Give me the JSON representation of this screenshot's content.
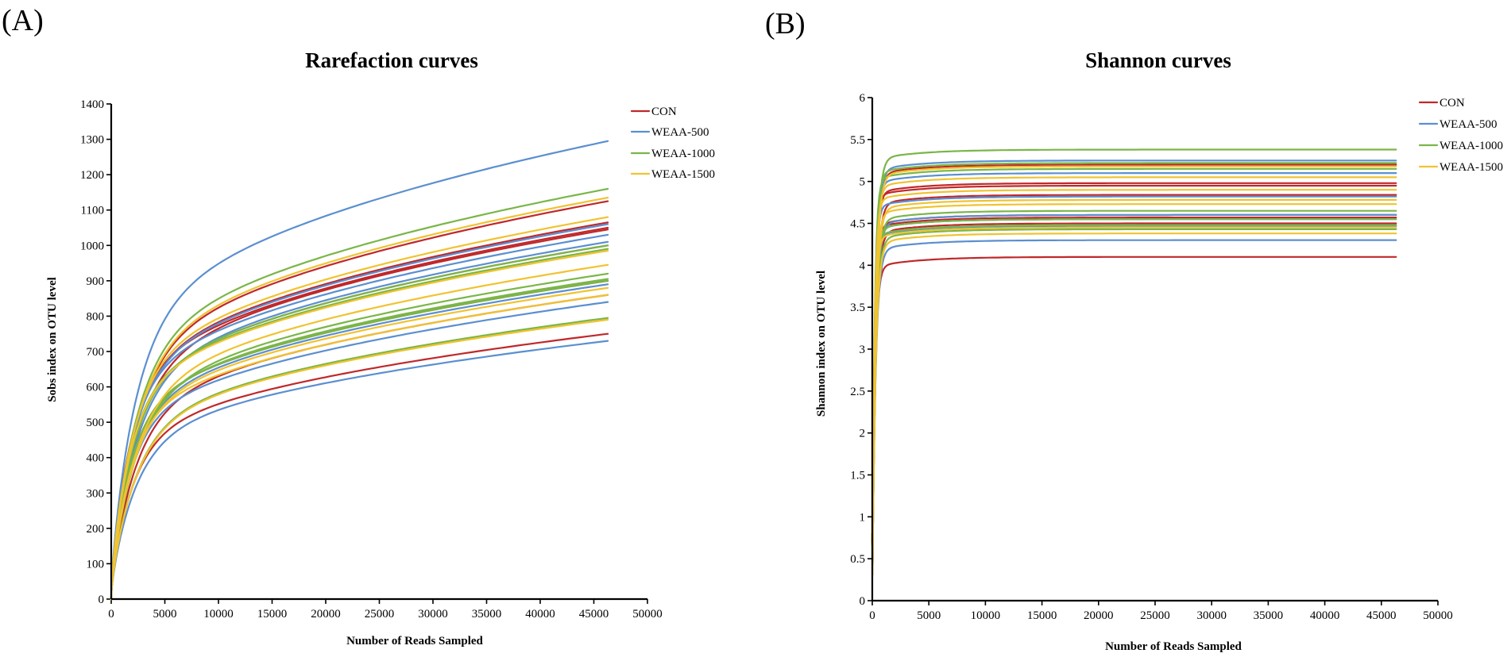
{
  "panels": [
    {
      "label": "(A)",
      "title": "Rarefaction curves",
      "xlabel": "Number of Reads Sampled",
      "ylabel": "Sobs index on OTU level",
      "xticks": [
        "0",
        "5000",
        "10000",
        "15000",
        "20000",
        "25000",
        "30000",
        "35000",
        "40000",
        "45000",
        "50000"
      ],
      "yticks": [
        "0",
        "100",
        "200",
        "300",
        "400",
        "500",
        "600",
        "700",
        "800",
        "900",
        "1000",
        "1100",
        "1200",
        "1300",
        "1400"
      ],
      "legend": [
        "CON",
        "WEAA-500",
        "WEAA-1000",
        "WEAA-1500"
      ]
    },
    {
      "label": "(B)",
      "title": "Shannon curves",
      "xlabel": "Number of Reads Sampled",
      "ylabel": "Shannon index on OTU level",
      "xticks": [
        "0",
        "5000",
        "10000",
        "15000",
        "20000",
        "25000",
        "30000",
        "35000",
        "40000",
        "45000",
        "50000"
      ],
      "yticks": [
        "0",
        "0.5",
        "1",
        "1.5",
        "2",
        "2.5",
        "3",
        "3.5",
        "4",
        "4.5",
        "5",
        "5.5",
        "6"
      ],
      "legend": [
        "CON",
        "WEAA-500",
        "WEAA-1000",
        "WEAA-1500"
      ]
    }
  ],
  "chart_data": [
    {
      "type": "line",
      "title": "Rarefaction curves",
      "xlabel": "Number of Reads Sampled",
      "ylabel": "Sobs index on OTU level",
      "xlim": [
        0,
        50000
      ],
      "ylim": [
        0,
        1400
      ],
      "x_max_sampled": 46300,
      "legend_position": "top-right",
      "colors": {
        "CON": "#c0282a",
        "WEAA-500": "#5b8fd0",
        "WEAA-1000": "#7ab648",
        "WEAA-1500": "#f0c330"
      },
      "note": "Approximate final Sobs value (at ~46300 reads) per sample curve",
      "series": [
        {
          "name": "CON",
          "final_values": [
            1125,
            1065,
            1050,
            1045,
            1000,
            900,
            860,
            750
          ]
        },
        {
          "name": "WEAA-500",
          "final_values": [
            1295,
            1060,
            1030,
            1010,
            890,
            840,
            730
          ]
        },
        {
          "name": "WEAA-1000",
          "final_values": [
            1160,
            1000,
            990,
            920,
            905,
            900,
            795
          ]
        },
        {
          "name": "WEAA-1500",
          "final_values": [
            1135,
            1080,
            985,
            945,
            880,
            860,
            790
          ]
        }
      ]
    },
    {
      "type": "line",
      "title": "Shannon curves",
      "xlabel": "Number of Reads Sampled",
      "ylabel": "Shannon index on OTU level",
      "xlim": [
        0,
        50000
      ],
      "ylim": [
        0,
        6
      ],
      "x_max_sampled": 46300,
      "legend_position": "top-right",
      "colors": {
        "CON": "#c0282a",
        "WEAA-500": "#5b8fd0",
        "WEAA-1000": "#7ab648",
        "WEAA-1500": "#f0c330"
      },
      "note": "Approximate plateau Shannon value per sample curve",
      "series": [
        {
          "name": "CON",
          "final_values": [
            5.2,
            4.98,
            4.95,
            4.84,
            4.6,
            4.57,
            4.5,
            4.1
          ]
        },
        {
          "name": "WEAA-500",
          "final_values": [
            5.25,
            5.1,
            4.82,
            4.6,
            4.55,
            4.47,
            4.3
          ]
        },
        {
          "name": "WEAA-1000",
          "final_values": [
            5.38,
            5.22,
            5.15,
            4.65,
            4.55,
            4.48,
            4.43
          ]
        },
        {
          "name": "WEAA-1500",
          "final_values": [
            5.18,
            5.05,
            4.9,
            4.78,
            4.73,
            4.45,
            4.38
          ]
        }
      ]
    }
  ]
}
